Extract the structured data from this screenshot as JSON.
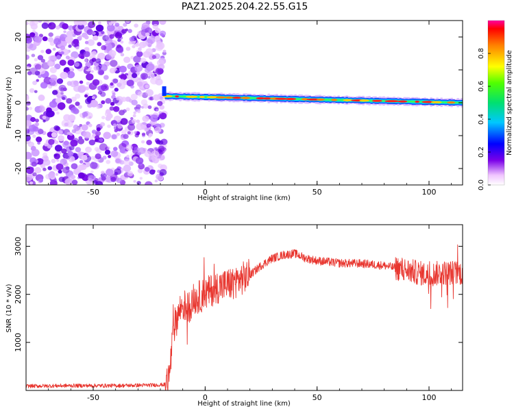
{
  "chart_data": [
    {
      "type": "heatmap",
      "title": "PAZ1.2025.204.22.55.G15",
      "xlabel": "Height of straight line (km)",
      "ylabel": "Frequency (Hz)",
      "xlim": [
        -80,
        115
      ],
      "ylim": [
        -25,
        25
      ],
      "x_ticks": [
        -50,
        0,
        50,
        100
      ],
      "y_ticks": [
        -20,
        -10,
        0,
        10,
        20
      ],
      "colorbar": {
        "label": "Normalized spectral amplitude",
        "range": [
          0,
          1
        ],
        "ticks": [
          "0.0",
          "0.2",
          "0.4",
          "0.6",
          "0.8"
        ]
      },
      "regions": [
        {
          "x_range": [
            -80,
            -18
          ],
          "description": "scattered noise, amplitude 0.0-0.2",
          "freq_range": [
            -25,
            25
          ]
        },
        {
          "x_range": [
            -18,
            115
          ],
          "description": "narrow carrier band near 0 Hz, amplitude up to 1.0",
          "center_freq": [
            2,
            0
          ],
          "bandwidth": 2
        }
      ]
    },
    {
      "type": "line",
      "xlabel": "Height of straight line (km)",
      "ylabel": "SNR (10 * v/v)",
      "xlim": [
        -80,
        115
      ],
      "ylim": [
        0,
        3450
      ],
      "x_ticks": [
        -50,
        0,
        50,
        100
      ],
      "y_ticks": [
        1000,
        2000,
        3000
      ],
      "color": "#e8352e",
      "series": [
        {
          "x": [
            -80,
            -60,
            -40,
            -25,
            -18,
            -16,
            -14,
            -12,
            -10,
            -8,
            -5,
            0,
            5,
            10,
            15,
            20,
            25,
            30,
            35,
            40,
            45,
            50,
            60,
            70,
            80,
            85,
            90,
            95,
            100,
            105,
            110,
            115
          ],
          "values": [
            90,
            100,
            100,
            110,
            120,
            300,
            1300,
            1600,
            1800,
            1700,
            1900,
            2000,
            2150,
            2200,
            2300,
            2400,
            2600,
            2750,
            2820,
            2850,
            2750,
            2700,
            2650,
            2640,
            2600,
            2550,
            2500,
            2450,
            2400,
            2450,
            2450,
            2450
          ]
        }
      ]
    }
  ]
}
